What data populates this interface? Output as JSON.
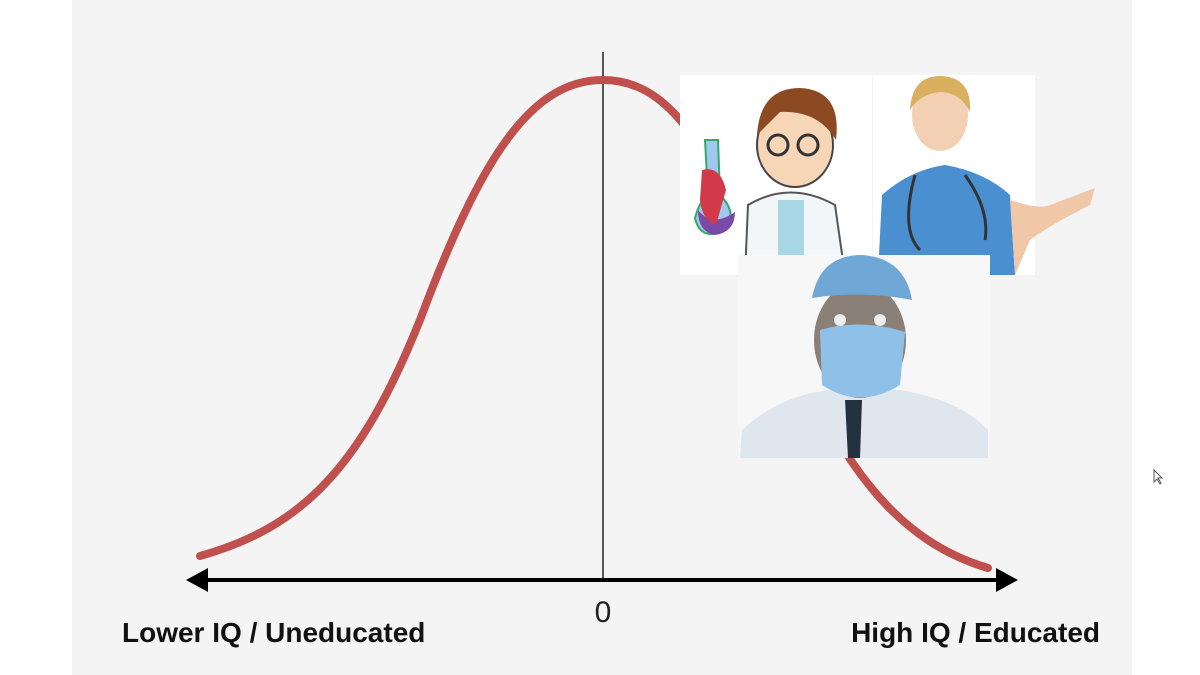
{
  "axis": {
    "origin_label": "0",
    "left_label": "Lower IQ / Uneducated",
    "right_label": "High IQ / Educated"
  }
}
